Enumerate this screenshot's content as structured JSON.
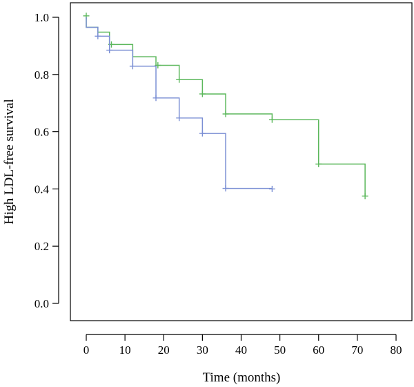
{
  "chart_data": {
    "type": "line",
    "subtype": "kaplan-meier-step",
    "title": "",
    "xlabel": "Time (months)",
    "ylabel": "High LDL-free survival",
    "xlim": [
      0,
      80
    ],
    "ylim": [
      0,
      1.0
    ],
    "xticks": [
      0,
      10,
      20,
      30,
      40,
      50,
      60,
      70,
      80
    ],
    "yticks": [
      0.0,
      0.2,
      0.4,
      0.6,
      0.8,
      1.0
    ],
    "xtick_labels": [
      "0",
      "10",
      "20",
      "30",
      "40",
      "50",
      "60",
      "70",
      "80"
    ],
    "ytick_labels": [
      "0.0",
      "0.2",
      "0.4",
      "0.6",
      "0.8",
      "1.0"
    ],
    "grid": false,
    "legend": "none",
    "series": [
      {
        "color": "#5cb85c",
        "steps": [
          {
            "t": 0,
            "s": 1.0
          },
          {
            "t": 0,
            "s": 0.965
          },
          {
            "t": 3,
            "s": 0.948
          },
          {
            "t": 6,
            "s": 0.905
          },
          {
            "t": 12,
            "s": 0.862
          },
          {
            "t": 18,
            "s": 0.832
          },
          {
            "t": 24,
            "s": 0.782
          },
          {
            "t": 30,
            "s": 0.732
          },
          {
            "t": 36,
            "s": 0.662
          },
          {
            "t": 48,
            "s": 0.642
          },
          {
            "t": 60,
            "s": 0.487
          },
          {
            "t": 72,
            "s": 0.375
          }
        ],
        "end": 72,
        "censor": [
          {
            "t": 0,
            "s": 1.005
          },
          {
            "t": 6.5,
            "s": 0.905
          },
          {
            "t": 18.5,
            "s": 0.832
          },
          {
            "t": 24,
            "s": 0.782
          },
          {
            "t": 30,
            "s": 0.732
          },
          {
            "t": 36,
            "s": 0.662
          },
          {
            "t": 48,
            "s": 0.642
          },
          {
            "t": 60,
            "s": 0.487
          },
          {
            "t": 72,
            "s": 0.375
          }
        ]
      },
      {
        "color": "#7b8fd4",
        "steps": [
          {
            "t": 0,
            "s": 1.0
          },
          {
            "t": 0,
            "s": 0.965
          },
          {
            "t": 3,
            "s": 0.934
          },
          {
            "t": 6,
            "s": 0.885
          },
          {
            "t": 12,
            "s": 0.829
          },
          {
            "t": 18,
            "s": 0.718
          },
          {
            "t": 24,
            "s": 0.648
          },
          {
            "t": 30,
            "s": 0.594
          },
          {
            "t": 36,
            "s": 0.402
          }
        ],
        "end": 48,
        "censor": [
          {
            "t": 3,
            "s": 0.934
          },
          {
            "t": 6,
            "s": 0.885
          },
          {
            "t": 12,
            "s": 0.829
          },
          {
            "t": 18,
            "s": 0.718
          },
          {
            "t": 24,
            "s": 0.648
          },
          {
            "t": 30,
            "s": 0.594
          },
          {
            "t": 36,
            "s": 0.402
          },
          {
            "t": 48,
            "s": 0.4
          }
        ]
      }
    ]
  }
}
